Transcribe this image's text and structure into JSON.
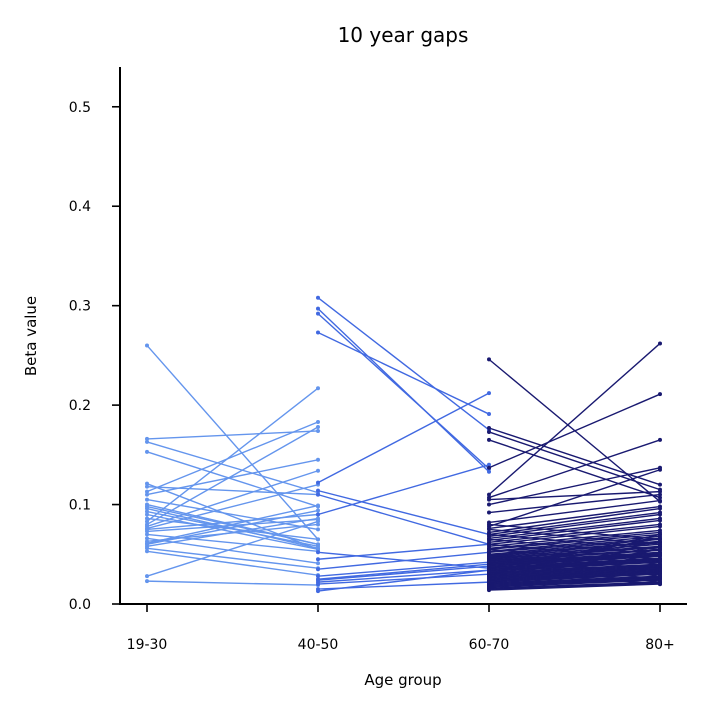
{
  "chart_data": {
    "type": "line",
    "title": "10 year gaps",
    "xlabel": "Age group",
    "ylabel": "Beta value",
    "categories": [
      "19-30",
      "40-50",
      "60-70",
      "80+"
    ],
    "ylim": [
      0,
      0.54
    ],
    "yticks": [
      "0.0",
      "0.1",
      "0.2",
      "0.3",
      "0.4",
      "0.5"
    ],
    "ytick_values": [
      0,
      0.1,
      0.2,
      0.3,
      0.4,
      0.5
    ],
    "grid": false,
    "legend": "none",
    "series": [
      {
        "pair": [
          "19-30",
          "40-50"
        ],
        "color": "#6495ED",
        "lines": [
          [
            0.26,
            0.065
          ],
          [
            0.166,
            0.174
          ],
          [
            0.163,
            0.112
          ],
          [
            0.153,
            0.098
          ],
          [
            0.121,
            0.055
          ],
          [
            0.118,
            0.11
          ],
          [
            0.113,
            0.183
          ],
          [
            0.11,
            0.145
          ],
          [
            0.105,
            0.075
          ],
          [
            0.1,
            0.06
          ],
          [
            0.098,
            0.06
          ],
          [
            0.096,
            0.056
          ],
          [
            0.093,
            0.058
          ],
          [
            0.09,
            0.055
          ],
          [
            0.086,
            0.065
          ],
          [
            0.083,
            0.217
          ],
          [
            0.08,
            0.178
          ],
          [
            0.078,
            0.134
          ],
          [
            0.076,
            0.12
          ],
          [
            0.075,
            0.09
          ],
          [
            0.073,
            0.085
          ],
          [
            0.07,
            0.053
          ],
          [
            0.066,
            0.041
          ],
          [
            0.063,
            0.08
          ],
          [
            0.061,
            0.099
          ],
          [
            0.06,
            0.094
          ],
          [
            0.058,
            0.086
          ],
          [
            0.056,
            0.036
          ],
          [
            0.053,
            0.029
          ],
          [
            0.028,
            0.083
          ],
          [
            0.023,
            0.019
          ]
        ]
      },
      {
        "pair": [
          "40-50",
          "60-70"
        ],
        "color": "#4169E1",
        "lines": [
          [
            0.308,
            0.175
          ],
          [
            0.297,
            0.133
          ],
          [
            0.292,
            0.136
          ],
          [
            0.273,
            0.191
          ],
          [
            0.122,
            0.212
          ],
          [
            0.114,
            0.07
          ],
          [
            0.11,
            0.06
          ],
          [
            0.09,
            0.14
          ],
          [
            0.052,
            0.036
          ],
          [
            0.045,
            0.06
          ],
          [
            0.035,
            0.052
          ],
          [
            0.028,
            0.042
          ],
          [
            0.025,
            0.04
          ],
          [
            0.024,
            0.038
          ],
          [
            0.022,
            0.034
          ],
          [
            0.02,
            0.03
          ],
          [
            0.015,
            0.022
          ],
          [
            0.013,
            0.034
          ]
        ]
      },
      {
        "pair": [
          "60-70",
          "80+"
        ],
        "color": "#191970",
        "lines": [
          [
            0.246,
            0.103
          ],
          [
            0.177,
            0.12
          ],
          [
            0.173,
            0.115
          ],
          [
            0.165,
            0.107
          ],
          [
            0.137,
            0.211
          ],
          [
            0.11,
            0.262
          ],
          [
            0.107,
            0.165
          ],
          [
            0.105,
            0.113
          ],
          [
            0.1,
            0.137
          ],
          [
            0.092,
            0.11
          ],
          [
            0.082,
            0.104
          ],
          [
            0.078,
            0.135
          ],
          [
            0.076,
            0.098
          ],
          [
            0.072,
            0.096
          ],
          [
            0.07,
            0.092
          ],
          [
            0.068,
            0.09
          ],
          [
            0.066,
            0.086
          ],
          [
            0.064,
            0.084
          ],
          [
            0.062,
            0.08
          ],
          [
            0.06,
            0.078
          ],
          [
            0.058,
            0.074
          ],
          [
            0.056,
            0.072
          ],
          [
            0.055,
            0.07
          ],
          [
            0.053,
            0.068
          ],
          [
            0.052,
            0.066
          ],
          [
            0.05,
            0.065
          ],
          [
            0.049,
            0.063
          ],
          [
            0.048,
            0.062
          ],
          [
            0.047,
            0.06
          ],
          [
            0.046,
            0.058
          ],
          [
            0.045,
            0.057
          ],
          [
            0.044,
            0.055
          ],
          [
            0.043,
            0.054
          ],
          [
            0.042,
            0.052
          ],
          [
            0.041,
            0.051
          ],
          [
            0.04,
            0.05
          ],
          [
            0.039,
            0.049
          ],
          [
            0.038,
            0.048
          ],
          [
            0.037,
            0.046
          ],
          [
            0.036,
            0.045
          ],
          [
            0.035,
            0.044
          ],
          [
            0.034,
            0.043
          ],
          [
            0.033,
            0.042
          ],
          [
            0.032,
            0.04
          ],
          [
            0.031,
            0.039
          ],
          [
            0.03,
            0.038
          ],
          [
            0.029,
            0.037
          ],
          [
            0.028,
            0.036
          ],
          [
            0.027,
            0.035
          ],
          [
            0.026,
            0.034
          ],
          [
            0.025,
            0.033
          ],
          [
            0.024,
            0.032
          ],
          [
            0.023,
            0.031
          ],
          [
            0.022,
            0.03
          ],
          [
            0.021,
            0.028
          ],
          [
            0.02,
            0.027
          ],
          [
            0.019,
            0.026
          ],
          [
            0.018,
            0.025
          ],
          [
            0.017,
            0.024
          ],
          [
            0.016,
            0.022
          ],
          [
            0.015,
            0.021
          ],
          [
            0.014,
            0.02
          ],
          [
            0.032,
            0.07
          ],
          [
            0.036,
            0.066
          ],
          [
            0.04,
            0.062
          ],
          [
            0.028,
            0.058
          ],
          [
            0.025,
            0.055
          ],
          [
            0.022,
            0.05
          ],
          [
            0.045,
            0.03
          ],
          [
            0.05,
            0.035
          ],
          [
            0.055,
            0.04
          ],
          [
            0.06,
            0.045
          ],
          [
            0.065,
            0.05
          ],
          [
            0.07,
            0.055
          ],
          [
            0.075,
            0.06
          ],
          [
            0.08,
            0.065
          ],
          [
            0.043,
            0.025
          ],
          [
            0.038,
            0.022
          ],
          [
            0.033,
            0.02
          ],
          [
            0.048,
            0.028
          ]
        ]
      }
    ]
  }
}
